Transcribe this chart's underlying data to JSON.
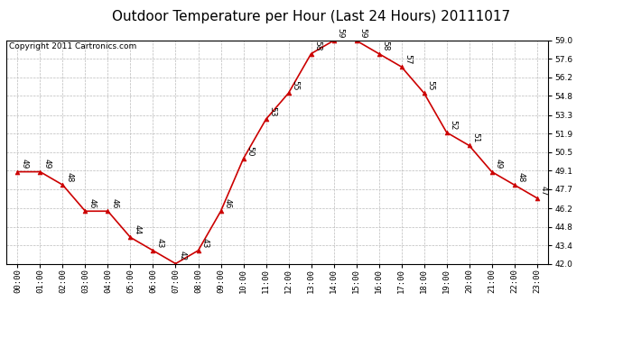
{
  "title": "Outdoor Temperature per Hour (Last 24 Hours) 20111017",
  "copyright": "Copyright 2011 Cartronics.com",
  "hours": [
    "00:00",
    "01:00",
    "02:00",
    "03:00",
    "04:00",
    "05:00",
    "06:00",
    "07:00",
    "08:00",
    "09:00",
    "10:00",
    "11:00",
    "12:00",
    "13:00",
    "14:00",
    "15:00",
    "16:00",
    "17:00",
    "18:00",
    "19:00",
    "20:00",
    "21:00",
    "22:00",
    "23:00"
  ],
  "temps": [
    49,
    49,
    48,
    46,
    46,
    44,
    43,
    42,
    43,
    46,
    50,
    53,
    55,
    58,
    59,
    59,
    58,
    57,
    55,
    52,
    51,
    49,
    48,
    47
  ],
  "ylim_min": 42.0,
  "ylim_max": 59.0,
  "yticks": [
    42.0,
    43.4,
    44.8,
    46.2,
    47.7,
    49.1,
    50.5,
    51.9,
    53.3,
    54.8,
    56.2,
    57.6,
    59.0
  ],
  "line_color": "#cc0000",
  "marker_color": "#cc0000",
  "bg_color": "#ffffff",
  "grid_color": "#bbbbbb",
  "title_fontsize": 11,
  "copyright_fontsize": 6.5,
  "label_fontsize": 6.5,
  "annot_fontsize": 6.5
}
